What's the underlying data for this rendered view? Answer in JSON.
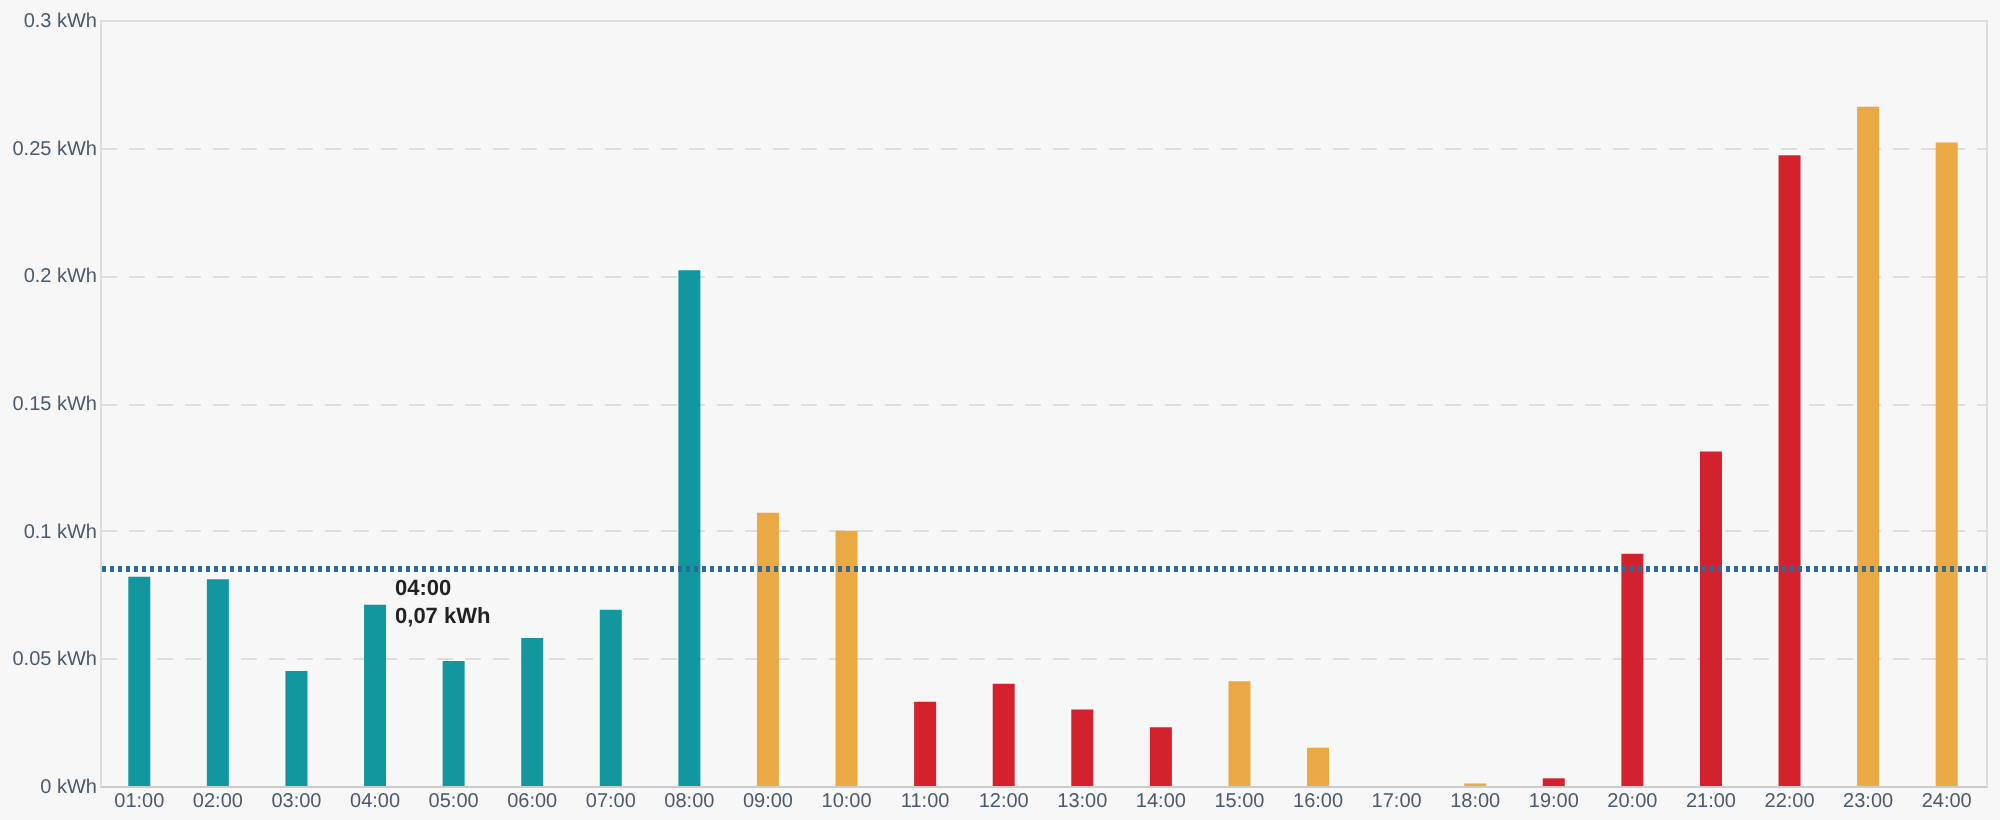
{
  "chart_data": {
    "type": "bar",
    "categories": [
      "01:00",
      "02:00",
      "03:00",
      "04:00",
      "05:00",
      "06:00",
      "07:00",
      "08:00",
      "09:00",
      "10:00",
      "11:00",
      "12:00",
      "13:00",
      "14:00",
      "15:00",
      "16:00",
      "17:00",
      "18:00",
      "19:00",
      "20:00",
      "21:00",
      "22:00",
      "23:00",
      "24:00"
    ],
    "values": [
      0.082,
      0.081,
      0.045,
      0.071,
      0.049,
      0.058,
      0.069,
      0.202,
      0.107,
      0.1,
      0.033,
      0.04,
      0.03,
      0.023,
      0.041,
      0.015,
      null,
      0.001,
      0.003,
      0.091,
      0.131,
      0.247,
      0.266,
      0.252
    ],
    "colors": [
      "#13979f",
      "#13979f",
      "#13979f",
      "#13979f",
      "#13979f",
      "#13979f",
      "#13979f",
      "#13979f",
      "#eaa945",
      "#eaa945",
      "#d3222d",
      "#d3222d",
      "#d3222d",
      "#d3222d",
      "#eaa945",
      "#eaa945",
      "#eaa945",
      "#eaa945",
      "#d3222d",
      "#d3222d",
      "#d3222d",
      "#d3222d",
      "#eaa945",
      "#eaa945"
    ],
    "ylim": [
      0,
      0.3
    ],
    "yticks": [
      {
        "value": 0,
        "label": "0 kWh"
      },
      {
        "value": 0.05,
        "label": "0.05 kWh"
      },
      {
        "value": 0.1,
        "label": "0.1 kWh"
      },
      {
        "value": 0.15,
        "label": "0.15 kWh"
      },
      {
        "value": 0.2,
        "label": "0.2 kWh"
      },
      {
        "value": 0.25,
        "label": "0.25 kWh"
      },
      {
        "value": 0.3,
        "label": "0.3 kWh"
      }
    ],
    "grid": "y",
    "ref_lines": [
      {
        "axis": "y",
        "value": 0.085,
        "color": "#2b6a94",
        "line_style": "dotted"
      }
    ],
    "annotations": [
      {
        "text": "04:00\n0,07 kWh",
        "x": "04:00",
        "y": 0.07
      }
    ]
  }
}
